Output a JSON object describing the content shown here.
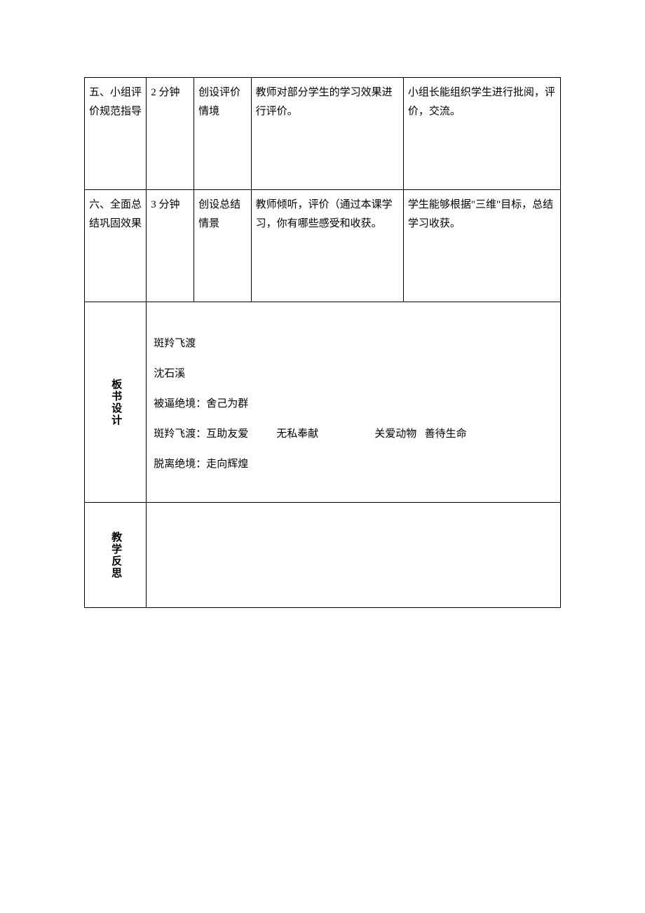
{
  "table": {
    "columns": {
      "widths_pct": [
        13,
        10,
        12,
        32,
        33
      ]
    },
    "rows": [
      {
        "step": "五、小组评价规范指导",
        "time": "2 分钟",
        "situation": "创设评价情境",
        "teacher": "教师对部分学生的学习效果进行评价。",
        "student": "小组长能组织学生进行批阅，评价，交流。"
      },
      {
        "step": "六、全面总结巩固效果",
        "time": "3 分钟",
        "situation": "创设总结情景",
        "teacher": "教师倾听，评价（通过本课学习，你有哪些感受和收获。",
        "student": "学生能够根据\"三维\"目标，总结学习收获。"
      }
    ],
    "board_design": {
      "label": "板书设计",
      "title": "斑羚飞渡",
      "author": "沈石溪",
      "line1_left": "被逼绝境：舍己为群",
      "line2_left": "斑羚飞渡：互助友爱",
      "line2_mid": "无私奉献",
      "line2_right1": "关爱动物",
      "line2_right2": "善待生命",
      "line3_left": "脱离绝境：走向辉煌"
    },
    "reflection": {
      "label": "教学反思"
    }
  },
  "style": {
    "background_color": "#ffffff",
    "border_color": "#000000",
    "text_color": "#000000",
    "font_size_pt": 11,
    "line_height": 1.8
  }
}
